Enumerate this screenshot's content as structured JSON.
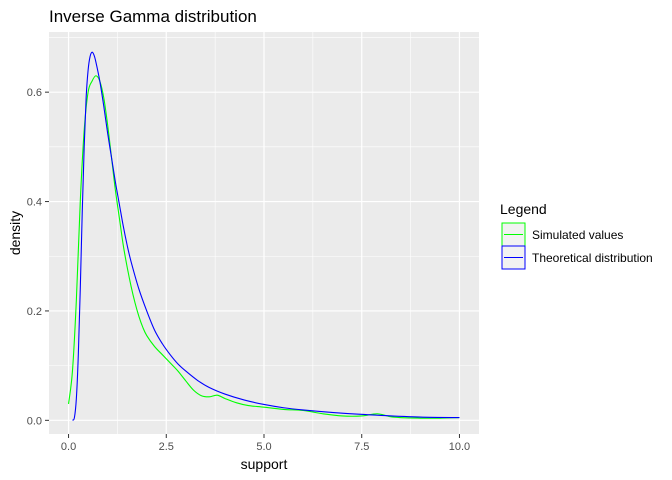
{
  "chart_data": {
    "type": "line",
    "title": "Inverse Gamma distribution",
    "xlabel": "support",
    "ylabel": "density",
    "xlim": [
      -0.5,
      10.5
    ],
    "ylim": [
      -0.025,
      0.71
    ],
    "x_ticks": [
      0.0,
      2.5,
      5.0,
      7.5,
      10.0
    ],
    "x_tick_labels": [
      "0.0",
      "2.5",
      "5.0",
      "7.5",
      "10.0"
    ],
    "y_ticks": [
      0.0,
      0.2,
      0.4,
      0.6
    ],
    "y_tick_labels": [
      "0.0",
      "0.2",
      "0.4",
      "0.6"
    ],
    "grid": true,
    "legend": {
      "title": "Legend",
      "position": "right"
    },
    "series": [
      {
        "name": "Simulated values",
        "color": "#00ff00",
        "x": [
          0.0,
          0.1,
          0.2,
          0.3,
          0.4,
          0.5,
          0.6,
          0.7,
          0.8,
          0.9,
          1.0,
          1.1,
          1.2,
          1.3,
          1.4,
          1.5,
          1.6,
          1.7,
          1.8,
          1.9,
          2.0,
          2.2,
          2.4,
          2.6,
          2.8,
          3.0,
          3.2,
          3.4,
          3.6,
          3.8,
          4.0,
          4.3,
          4.6,
          5.0,
          5.5,
          6.0,
          6.5,
          7.0,
          7.5,
          7.9,
          8.3,
          9.0,
          9.5,
          10.0
        ],
        "y": [
          0.03,
          0.09,
          0.22,
          0.4,
          0.53,
          0.6,
          0.62,
          0.63,
          0.62,
          0.59,
          0.54,
          0.48,
          0.42,
          0.37,
          0.32,
          0.28,
          0.245,
          0.215,
          0.19,
          0.17,
          0.155,
          0.135,
          0.12,
          0.105,
          0.09,
          0.072,
          0.055,
          0.045,
          0.043,
          0.046,
          0.04,
          0.032,
          0.027,
          0.024,
          0.02,
          0.018,
          0.012,
          0.008,
          0.008,
          0.012,
          0.006,
          0.004,
          0.004,
          0.005
        ]
      },
      {
        "name": "Theoretical distribution",
        "color": "#0000ff",
        "x": [
          0.1,
          0.15,
          0.2,
          0.25,
          0.3,
          0.35,
          0.4,
          0.45,
          0.5,
          0.55,
          0.6,
          0.65,
          0.7,
          0.8,
          0.9,
          1.0,
          1.1,
          1.2,
          1.3,
          1.4,
          1.5,
          1.6,
          1.8,
          2.0,
          2.2,
          2.4,
          2.6,
          2.8,
          3.0,
          3.3,
          3.6,
          4.0,
          4.5,
          5.0,
          5.5,
          6.0,
          7.0,
          8.0,
          9.0,
          10.0
        ],
        "y": [
          0.0,
          0.005,
          0.04,
          0.12,
          0.24,
          0.38,
          0.5,
          0.59,
          0.64,
          0.665,
          0.673,
          0.668,
          0.655,
          0.62,
          0.575,
          0.525,
          0.48,
          0.435,
          0.395,
          0.355,
          0.32,
          0.29,
          0.24,
          0.2,
          0.165,
          0.14,
          0.12,
          0.103,
          0.09,
          0.073,
          0.06,
          0.048,
          0.037,
          0.029,
          0.023,
          0.019,
          0.013,
          0.009,
          0.006,
          0.005
        ]
      }
    ]
  }
}
